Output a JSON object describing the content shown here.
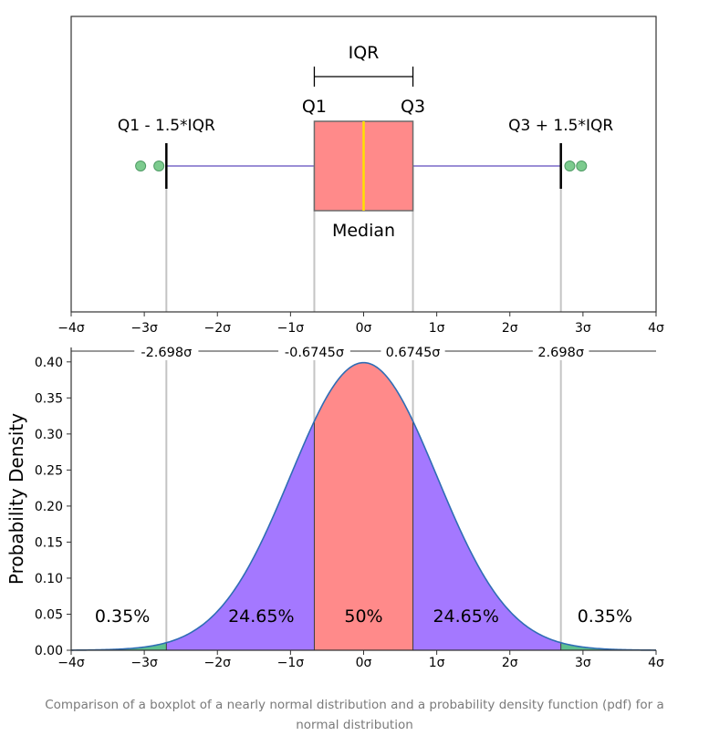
{
  "chart_data": [
    {
      "type": "boxplot",
      "x_ticks": [
        "−4σ",
        "−3σ",
        "−2σ",
        "−1σ",
        "0σ",
        "1σ",
        "2σ",
        "3σ",
        "4σ"
      ],
      "xlim": [
        -4,
        4
      ],
      "q1": -0.6745,
      "median": 0,
      "q3": 0.6745,
      "whisker_low": -2.698,
      "whisker_high": 2.698,
      "outliers": [
        -3.05,
        -2.8,
        2.82,
        2.98
      ],
      "annotations": {
        "iqr": "IQR",
        "q1": "Q1",
        "q3": "Q3",
        "lower_fence": "Q1 - 1.5*IQR",
        "upper_fence": "Q3 + 1.5*IQR",
        "median": "Median"
      },
      "colors": {
        "box": "#ff8a8a",
        "median": "#ffe000",
        "whisker": "#9b8ed6",
        "outlier": "#7ccb8e"
      }
    },
    {
      "type": "area",
      "distribution": "normal",
      "mean": 0,
      "sd": 1,
      "xlim": [
        -4,
        4
      ],
      "ylim": [
        0,
        0.42
      ],
      "ylabel": "Probability Density",
      "x_ticks": [
        "−4σ",
        "−3σ",
        "−2σ",
        "−1σ",
        "0σ",
        "1σ",
        "2σ",
        "3σ",
        "4σ"
      ],
      "y_ticks": [
        "0.00",
        "0.05",
        "0.10",
        "0.15",
        "0.20",
        "0.25",
        "0.30",
        "0.35",
        "0.40"
      ],
      "boundaries": [
        {
          "value": -2.698,
          "label": "-2.698σ"
        },
        {
          "value": -0.6745,
          "label": "-0.6745σ"
        },
        {
          "value": 0.6745,
          "label": "0.6745σ"
        },
        {
          "value": 2.698,
          "label": "2.698σ"
        }
      ],
      "regions": [
        {
          "from": -4,
          "to": -2.698,
          "label": "0.35%",
          "label_x": -3.3,
          "label_y": 0.048,
          "color": "#5dbf8f"
        },
        {
          "from": -2.698,
          "to": -0.6745,
          "label": "24.65%",
          "label_x": -1.4,
          "label_y": 0.048,
          "color": "#a478ff"
        },
        {
          "from": -0.6745,
          "to": 0.6745,
          "label": "50%",
          "label_x": 0,
          "label_y": 0.048,
          "color": "#ff8a8a"
        },
        {
          "from": 0.6745,
          "to": 2.698,
          "label": "24.65%",
          "label_x": 1.4,
          "label_y": 0.048,
          "color": "#a478ff"
        },
        {
          "from": 2.698,
          "to": 4,
          "label": "0.35%",
          "label_x": 3.3,
          "label_y": 0.048,
          "color": "#5dbf8f"
        }
      ],
      "curve_color": "#2f6db5"
    }
  ],
  "caption": "Comparison of a boxplot of a nearly normal distribution and a probability density function (pdf) for a normal distribution"
}
